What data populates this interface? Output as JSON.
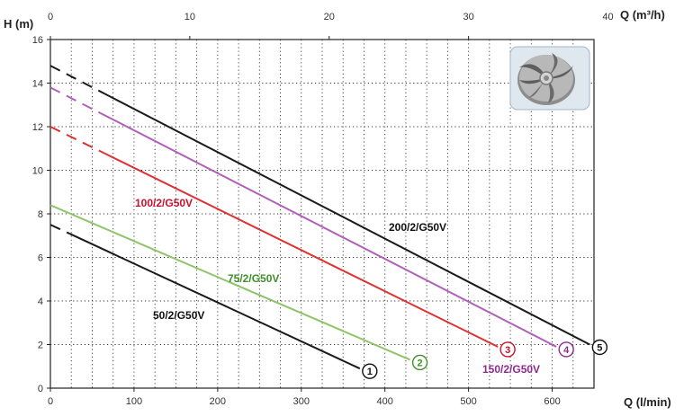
{
  "chart_data": {
    "type": "line",
    "ylabel": "H (m)",
    "xlabel": "Q (l/min)",
    "x2label": "Q (m³/h)",
    "xlim": [
      0,
      650
    ],
    "ylim": [
      0,
      16
    ],
    "x2lim": [
      0,
      39
    ],
    "xticks": [
      "0",
      "100",
      "200",
      "300",
      "400",
      "500",
      "600"
    ],
    "x2ticks": [
      "0",
      "10",
      "20",
      "30",
      "40"
    ],
    "yticks": [
      "0",
      "2",
      "4",
      "6",
      "8",
      "10",
      "12",
      "14",
      "16"
    ],
    "grid": true,
    "series": [
      {
        "name": "50/2/G50V",
        "marker": "1",
        "color": "#1a1a1a",
        "label_color": "#111111",
        "points": [
          [
            0,
            7.5
          ],
          [
            370,
            0.9
          ]
        ],
        "dashed_to": 23
      },
      {
        "name": "75/2/G50V",
        "marker": "2",
        "color": "#8fc46a",
        "label_color": "#3f8f2a",
        "points": [
          [
            0,
            8.4
          ],
          [
            430,
            1.3
          ]
        ],
        "dashed_to": 0
      },
      {
        "name": "100/2/G50V",
        "marker": "3",
        "color": "#e03030",
        "label_color": "#c8102e",
        "points": [
          [
            0,
            12.0
          ],
          [
            535,
            1.9
          ]
        ],
        "dashed_to": 65
      },
      {
        "name": "150/2/G50V",
        "marker": "4",
        "color": "#b060b8",
        "label_color": "#8e2a8e",
        "points": [
          [
            0,
            13.8
          ],
          [
            605,
            1.9
          ]
        ],
        "dashed_to": 60
      },
      {
        "name": "200/2/G50V",
        "marker": "5",
        "color": "#1a1a1a",
        "label_color": "#111111",
        "points": [
          [
            0,
            14.8
          ],
          [
            645,
            2.0
          ]
        ],
        "dashed_to": 65
      }
    ]
  },
  "inset": {
    "icon": "impeller-icon"
  }
}
